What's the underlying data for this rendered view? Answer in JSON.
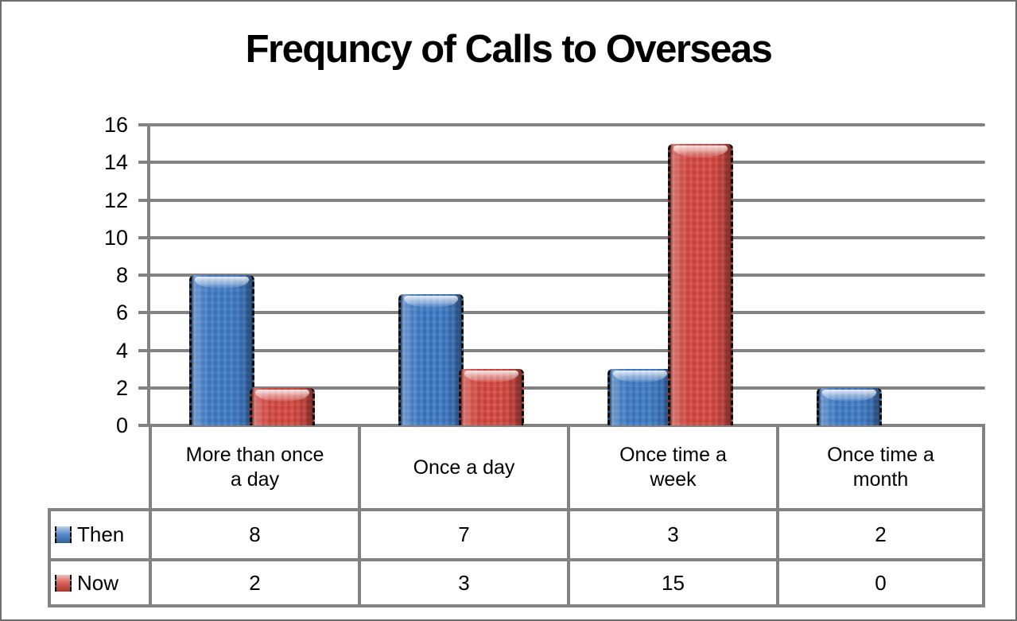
{
  "window": {
    "background": "#ffffff",
    "border_color": "#6e6e6e"
  },
  "chart_data": {
    "type": "bar",
    "title": "Frequncy of Calls to Overseas",
    "categories": [
      "More than once a day",
      "Once a day",
      "Once time a week",
      "Once time a month"
    ],
    "series": [
      {
        "name": "Then",
        "color": "#3E7AC6",
        "values": [
          8,
          7,
          3,
          2
        ]
      },
      {
        "name": "Now",
        "color": "#D4473F",
        "values": [
          2,
          3,
          15,
          0
        ]
      }
    ],
    "xlabel": "",
    "ylabel": "",
    "ylim": [
      0,
      16
    ],
    "yticks": [
      0,
      2,
      4,
      6,
      8,
      10,
      12,
      14,
      16
    ],
    "grid": true,
    "gridline_color": "#828282",
    "legend_position": "data-table-left",
    "data_table": true
  }
}
